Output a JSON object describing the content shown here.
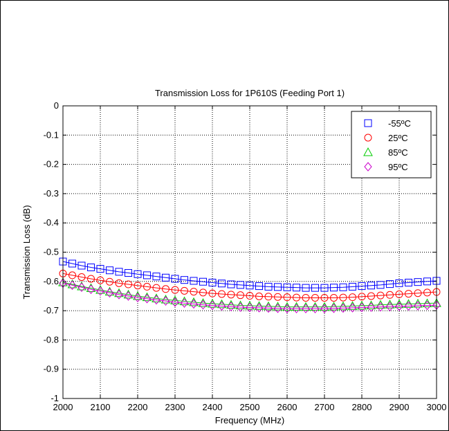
{
  "chart_data": {
    "type": "line",
    "title": "Transmission Loss for 1P610S (Feeding Port 1)",
    "xlabel": "Frequency (MHz)",
    "ylabel": "Transmission Loss (dB)",
    "xlim": [
      2000,
      3000
    ],
    "ylim": [
      -1,
      0
    ],
    "xticks": [
      2000,
      2100,
      2200,
      2300,
      2400,
      2500,
      2600,
      2700,
      2800,
      2900,
      3000
    ],
    "yticks": [
      0,
      -0.1,
      -0.2,
      -0.3,
      -0.4,
      -0.5,
      -0.6,
      -0.7,
      -0.8,
      -0.9,
      -1
    ],
    "xtick_labels": [
      "2000",
      "2100",
      "2200",
      "2300",
      "2400",
      "2500",
      "2600",
      "2700",
      "2800",
      "2900",
      "3000"
    ],
    "ytick_labels": [
      "0",
      "-0.1",
      "-0.2",
      "-0.3",
      "-0.4",
      "-0.5",
      "-0.6",
      "-0.7",
      "-0.8",
      "-0.9",
      "-1"
    ],
    "grid": true,
    "legend_position": "top-right",
    "series": [
      {
        "name": "-55ºC",
        "marker": "square",
        "color": "#0000ff",
        "x": [
          2000,
          2025,
          2050,
          2075,
          2100,
          2125,
          2150,
          2175,
          2200,
          2225,
          2250,
          2275,
          2300,
          2325,
          2350,
          2375,
          2400,
          2425,
          2450,
          2475,
          2500,
          2525,
          2550,
          2575,
          2600,
          2625,
          2650,
          2675,
          2700,
          2725,
          2750,
          2775,
          2800,
          2825,
          2850,
          2875,
          2900,
          2925,
          2950,
          2975,
          3000
        ],
        "values": [
          -0.532,
          -0.539,
          -0.546,
          -0.552,
          -0.557,
          -0.562,
          -0.567,
          -0.571,
          -0.575,
          -0.579,
          -0.583,
          -0.587,
          -0.591,
          -0.595,
          -0.598,
          -0.601,
          -0.604,
          -0.607,
          -0.61,
          -0.612,
          -0.614,
          -0.616,
          -0.618,
          -0.619,
          -0.62,
          -0.621,
          -0.622,
          -0.622,
          -0.622,
          -0.621,
          -0.62,
          -0.618,
          -0.616,
          -0.614,
          -0.612,
          -0.609,
          -0.606,
          -0.604,
          -0.602,
          -0.6,
          -0.598
        ]
      },
      {
        "name": "25ºC",
        "marker": "circle",
        "color": "#ff0000",
        "x": [
          2000,
          2025,
          2050,
          2075,
          2100,
          2125,
          2150,
          2175,
          2200,
          2225,
          2250,
          2275,
          2300,
          2325,
          2350,
          2375,
          2400,
          2425,
          2450,
          2475,
          2500,
          2525,
          2550,
          2575,
          2600,
          2625,
          2650,
          2675,
          2700,
          2725,
          2750,
          2775,
          2800,
          2825,
          2850,
          2875,
          2900,
          2925,
          2950,
          2975,
          3000
        ],
        "values": [
          -0.573,
          -0.579,
          -0.585,
          -0.591,
          -0.596,
          -0.601,
          -0.606,
          -0.61,
          -0.614,
          -0.618,
          -0.622,
          -0.626,
          -0.629,
          -0.632,
          -0.635,
          -0.638,
          -0.641,
          -0.643,
          -0.645,
          -0.647,
          -0.649,
          -0.651,
          -0.652,
          -0.653,
          -0.654,
          -0.655,
          -0.656,
          -0.656,
          -0.656,
          -0.656,
          -0.655,
          -0.654,
          -0.652,
          -0.65,
          -0.648,
          -0.646,
          -0.644,
          -0.642,
          -0.64,
          -0.638,
          -0.636
        ]
      },
      {
        "name": "85ºC",
        "marker": "triangle",
        "color": "#00cc00",
        "x": [
          2000,
          2025,
          2050,
          2075,
          2100,
          2125,
          2150,
          2175,
          2200,
          2225,
          2250,
          2275,
          2300,
          2325,
          2350,
          2375,
          2400,
          2425,
          2450,
          2475,
          2500,
          2525,
          2550,
          2575,
          2600,
          2625,
          2650,
          2675,
          2700,
          2725,
          2750,
          2775,
          2800,
          2825,
          2850,
          2875,
          2900,
          2925,
          2950,
          2975,
          3000
        ],
        "values": [
          -0.603,
          -0.61,
          -0.617,
          -0.623,
          -0.629,
          -0.635,
          -0.64,
          -0.645,
          -0.65,
          -0.654,
          -0.658,
          -0.662,
          -0.665,
          -0.668,
          -0.671,
          -0.674,
          -0.676,
          -0.678,
          -0.68,
          -0.682,
          -0.683,
          -0.684,
          -0.685,
          -0.686,
          -0.687,
          -0.687,
          -0.687,
          -0.687,
          -0.687,
          -0.686,
          -0.685,
          -0.684,
          -0.683,
          -0.682,
          -0.68,
          -0.679,
          -0.678,
          -0.677,
          -0.676,
          -0.675,
          -0.674
        ]
      },
      {
        "name": "95ºC",
        "marker": "diamond",
        "color": "#cc00cc",
        "x": [
          2000,
          2025,
          2050,
          2075,
          2100,
          2125,
          2150,
          2175,
          2200,
          2225,
          2250,
          2275,
          2300,
          2325,
          2350,
          2375,
          2400,
          2425,
          2450,
          2475,
          2500,
          2525,
          2550,
          2575,
          2600,
          2625,
          2650,
          2675,
          2700,
          2725,
          2750,
          2775,
          2800,
          2825,
          2850,
          2875,
          2900,
          2925,
          2950,
          2975,
          3000
        ],
        "values": [
          -0.606,
          -0.613,
          -0.62,
          -0.627,
          -0.633,
          -0.639,
          -0.645,
          -0.65,
          -0.655,
          -0.659,
          -0.663,
          -0.667,
          -0.671,
          -0.674,
          -0.677,
          -0.68,
          -0.682,
          -0.684,
          -0.686,
          -0.688,
          -0.689,
          -0.69,
          -0.691,
          -0.692,
          -0.693,
          -0.693,
          -0.693,
          -0.693,
          -0.693,
          -0.692,
          -0.691,
          -0.69,
          -0.689,
          -0.688,
          -0.687,
          -0.686,
          -0.685,
          -0.684,
          -0.683,
          -0.682,
          -0.681
        ]
      }
    ]
  }
}
